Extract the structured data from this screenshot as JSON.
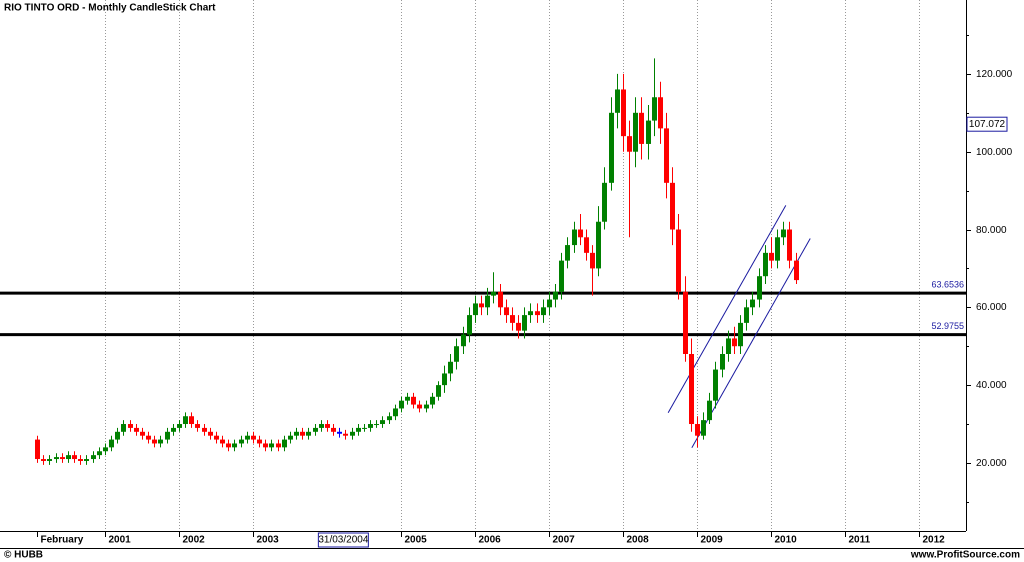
{
  "chart_data": {
    "type": "candlestick",
    "title": "RIO TINTO ORD - Monthly CandleStick Chart",
    "open": [
      26,
      21,
      20.5,
      21,
      21.5,
      21,
      22,
      21,
      20.5,
      21,
      22,
      23,
      24,
      26,
      28,
      30,
      29,
      28,
      27,
      26,
      25,
      26,
      28,
      29,
      30,
      32,
      30,
      29,
      28,
      27,
      26,
      25,
      24,
      25,
      26,
      27,
      26,
      25,
      24,
      25,
      24,
      26,
      27,
      28,
      27,
      28,
      29,
      30,
      29,
      28,
      27.5,
      27,
      28,
      29,
      29,
      30,
      30,
      31,
      32,
      34,
      36,
      37,
      35,
      34,
      35,
      37,
      40,
      43,
      46,
      50,
      53,
      58,
      61,
      60,
      63,
      64,
      60,
      58,
      56,
      54,
      58,
      59,
      58,
      60,
      62,
      64,
      72,
      76,
      80,
      78,
      74,
      70,
      82,
      92,
      110,
      116,
      104,
      100,
      110,
      102,
      108,
      114,
      106,
      92,
      80,
      64,
      48,
      30,
      27,
      31,
      36,
      44,
      48,
      52,
      50,
      56,
      60,
      62,
      68,
      74,
      72,
      78,
      80,
      72
    ],
    "high": [
      27,
      22,
      22,
      22.5,
      22.5,
      23,
      23,
      22,
      22,
      23,
      24,
      25,
      27,
      29,
      31,
      31,
      30,
      29,
      28,
      27,
      27,
      29,
      30,
      31,
      33,
      33,
      31,
      30,
      29,
      28,
      27,
      26,
      26,
      27,
      28,
      28,
      27,
      26,
      26,
      26,
      27,
      28,
      29,
      29,
      29,
      30,
      31,
      31,
      30,
      29,
      28.5,
      29,
      30,
      30,
      31,
      31,
      32,
      33,
      35,
      37,
      38,
      38,
      36,
      36,
      38,
      41,
      45,
      48,
      52,
      55,
      60,
      63,
      63,
      65,
      69,
      66,
      62,
      60,
      58,
      60,
      61,
      61,
      62,
      64,
      66,
      74,
      78,
      82,
      84,
      80,
      76,
      86,
      96,
      114,
      120,
      120,
      108,
      114,
      114,
      112,
      124,
      118,
      110,
      96,
      84,
      68,
      52,
      32,
      33,
      38,
      46,
      50,
      54,
      55,
      58,
      62,
      64,
      70,
      76,
      78,
      80,
      82,
      82,
      74
    ],
    "low": [
      20,
      19.5,
      19.5,
      20,
      20,
      20,
      20,
      19.5,
      19.5,
      20,
      21,
      22,
      23,
      25,
      27,
      28,
      27,
      26,
      25,
      24,
      24,
      25,
      27,
      28,
      29,
      29,
      28,
      27,
      26,
      25,
      24,
      23,
      23,
      24,
      25,
      25,
      24,
      23,
      23,
      23,
      23,
      25,
      26,
      26,
      26,
      27,
      28,
      28,
      27,
      26.5,
      26,
      26,
      27,
      28,
      28,
      29,
      29,
      30,
      31,
      33,
      35,
      34,
      33,
      33,
      34,
      36,
      38,
      41,
      44,
      48,
      51,
      56,
      58,
      58,
      61,
      58,
      56,
      54,
      52,
      52,
      56,
      56,
      56,
      58,
      60,
      62,
      70,
      74,
      76,
      72,
      63,
      68,
      80,
      90,
      106,
      100,
      78,
      96,
      98,
      98,
      104,
      102,
      88,
      76,
      62,
      46,
      28,
      24,
      26,
      30,
      34,
      42,
      46,
      48,
      48,
      54,
      58,
      60,
      66,
      70,
      70,
      76,
      70,
      66
    ],
    "close": [
      21,
      20.5,
      21,
      21.5,
      21,
      22,
      21,
      20.5,
      21,
      22,
      23,
      24,
      26,
      28,
      30,
      29,
      28,
      27,
      26,
      25,
      26,
      28,
      29,
      30,
      32,
      30,
      29,
      28,
      27,
      26,
      25,
      24,
      25,
      26,
      27,
      26,
      25,
      24,
      25,
      24,
      26,
      27,
      28,
      27,
      28,
      29,
      30,
      29,
      28,
      27.5,
      27,
      28,
      29,
      29,
      30,
      30,
      31,
      32,
      34,
      36,
      37,
      35,
      34,
      35,
      37,
      40,
      43,
      46,
      50,
      53,
      58,
      61,
      60,
      63,
      64,
      60,
      58,
      56,
      54,
      58,
      59,
      58,
      60,
      62,
      64,
      72,
      76,
      80,
      78,
      74,
      70,
      82,
      92,
      110,
      116,
      104,
      100,
      110,
      102,
      108,
      114,
      106,
      92,
      80,
      64,
      48,
      30,
      27,
      31,
      36,
      44,
      48,
      52,
      50,
      56,
      60,
      62,
      68,
      74,
      72,
      78,
      80,
      72,
      67
    ],
    "up_color": "#008000",
    "down_color": "#ff0000",
    "cursor": {
      "value": 2004.167,
      "label": "31/03/2004",
      "color": "#0000ff"
    },
    "xlim": [
      1999.581,
      2012.635
    ],
    "xticks": [
      {
        "value": 2000.083,
        "label": "February"
      },
      2001,
      2002,
      2003,
      2005,
      2006,
      2007,
      2008,
      2009,
      2010,
      2011,
      2012
    ],
    "ylim": [
      2.5,
      139
    ],
    "yticks": [
      {
        "value": 20,
        "label": "20.000"
      },
      {
        "value": 40,
        "label": "40.000"
      },
      {
        "value": 60,
        "label": "60.000"
      },
      {
        "value": 80,
        "label": "80.000"
      },
      {
        "value": 100,
        "label": "100.000"
      },
      {
        "value": 120,
        "label": "120.000"
      }
    ],
    "yminor": [
      10,
      30,
      50,
      70,
      90,
      110,
      130
    ],
    "grid": "x",
    "levels": [
      {
        "value": 63.6536,
        "label": "63.6536"
      },
      {
        "value": 52.9755,
        "label": "52.9755"
      }
    ],
    "price_marker": {
      "value": 107.072,
      "label": "107.072"
    },
    "trend_lines": [
      {
        "x": [
          2008.61,
          2010.2
        ],
        "y": [
          32.9,
          86.2
        ],
        "color": "#1a1aa0"
      },
      {
        "x": [
          2008.93,
          2010.53
        ],
        "y": [
          23.9,
          77.7
        ],
        "color": "#1a1aa0"
      }
    ],
    "footer_left": "© HUBB",
    "footer_right": "www.ProfitSource.com"
  }
}
